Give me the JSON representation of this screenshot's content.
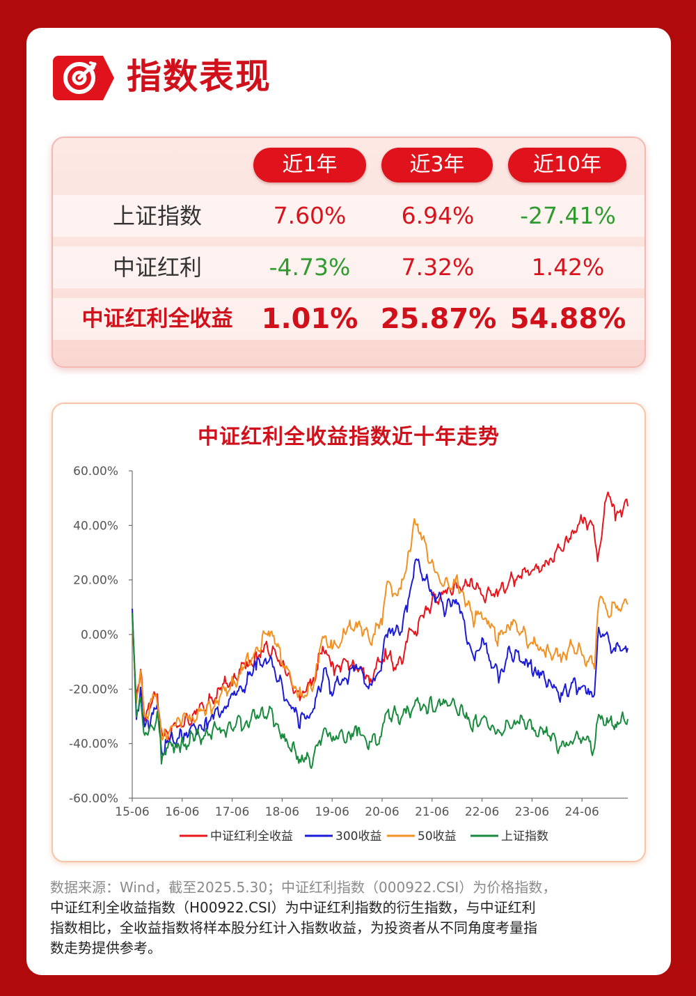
{
  "header": {
    "title": "指数表现"
  },
  "table": {
    "columns": [
      "近1年",
      "近3年",
      "近10年"
    ],
    "rows": [
      {
        "label": "上证指数",
        "values": [
          "7.60%",
          "6.94%",
          "-27.41%"
        ]
      },
      {
        "label": "中证红利",
        "values": [
          "-4.73%",
          "7.32%",
          "1.42%"
        ]
      },
      {
        "label": "中证红利全收益",
        "values": [
          "1.01%",
          "25.87%",
          "54.88%"
        ]
      }
    ]
  },
  "colors": {
    "brand_red": "#d0101a",
    "positive": "#d8131d",
    "negative": "#2f9a2f",
    "background": "#b00a0a"
  },
  "chart_data": {
    "type": "line",
    "title": "中证红利全收益指数近十年走势",
    "xlabel": "",
    "ylabel": "",
    "x_ticks": [
      "15-06",
      "16-06",
      "17-06",
      "18-06",
      "19-06",
      "20-06",
      "21-06",
      "22-06",
      "23-06",
      "24-06"
    ],
    "y_ticks": [
      "60.00%",
      "40.00%",
      "20.00%",
      "0.00%",
      "-20.00%",
      "-40.00%",
      "-60.00%"
    ],
    "ylim": [
      -60,
      60
    ],
    "xlim": [
      "2015-06",
      "2025-05"
    ],
    "legend_position": "bottom",
    "series": [
      {
        "name": "中证红利全收益",
        "color": "#e8141c",
        "x": [
          "2015-06",
          "2015-07",
          "2015-08",
          "2015-09",
          "2015-12",
          "2016-01",
          "2016-02",
          "2016-06",
          "2016-12",
          "2017-06",
          "2017-12",
          "2018-03",
          "2018-06",
          "2018-10",
          "2019-01",
          "2019-04",
          "2019-06",
          "2019-12",
          "2020-03",
          "2020-06",
          "2020-07",
          "2020-10",
          "2020-12",
          "2021-02",
          "2021-06",
          "2021-09",
          "2021-12",
          "2022-04",
          "2022-06",
          "2022-10",
          "2023-01",
          "2023-04",
          "2023-06",
          "2023-10",
          "2024-01",
          "2024-04",
          "2024-06",
          "2024-09",
          "2024-10",
          "2024-12",
          "2025-02",
          "2025-05"
        ],
        "values": [
          8,
          -25,
          -15,
          -30,
          -22,
          -38,
          -36,
          -33,
          -25,
          -16,
          -8,
          -5,
          -12,
          -22,
          -18,
          -4,
          -12,
          -10,
          -18,
          -8,
          -8,
          -12,
          -2,
          2,
          12,
          16,
          18,
          18,
          14,
          16,
          20,
          23,
          24,
          26,
          32,
          36,
          43,
          38,
          27,
          52,
          45,
          47
        ]
      },
      {
        "name": "300收益",
        "color": "#1a1ad8",
        "x": [
          "2015-06",
          "2015-07",
          "2015-08",
          "2015-09",
          "2015-12",
          "2016-01",
          "2016-02",
          "2016-06",
          "2016-12",
          "2017-06",
          "2017-12",
          "2018-03",
          "2018-06",
          "2018-10",
          "2019-01",
          "2019-04",
          "2019-06",
          "2019-12",
          "2020-03",
          "2020-06",
          "2020-07",
          "2020-10",
          "2020-12",
          "2021-02",
          "2021-06",
          "2021-09",
          "2021-12",
          "2022-04",
          "2022-06",
          "2022-10",
          "2023-01",
          "2023-04",
          "2023-06",
          "2023-10",
          "2024-01",
          "2024-04",
          "2024-06",
          "2024-09",
          "2024-10",
          "2024-12",
          "2025-02",
          "2025-05"
        ],
        "values": [
          8,
          -30,
          -20,
          -35,
          -25,
          -42,
          -40,
          -37,
          -32,
          -24,
          -12,
          -8,
          -20,
          -32,
          -30,
          -14,
          -20,
          -12,
          -20,
          -10,
          2,
          0,
          10,
          28,
          15,
          10,
          12,
          -8,
          -2,
          -15,
          -6,
          -10,
          -12,
          -18,
          -22,
          -18,
          -20,
          -22,
          3,
          -2,
          -6,
          -5
        ]
      },
      {
        "name": "50收益",
        "color": "#f39020",
        "x": [
          "2015-06",
          "2015-07",
          "2015-08",
          "2015-09",
          "2015-12",
          "2016-01",
          "2016-02",
          "2016-06",
          "2016-12",
          "2017-06",
          "2017-12",
          "2018-03",
          "2018-06",
          "2018-10",
          "2019-01",
          "2019-04",
          "2019-06",
          "2019-12",
          "2020-03",
          "2020-06",
          "2020-07",
          "2020-10",
          "2020-12",
          "2021-02",
          "2021-06",
          "2021-09",
          "2021-12",
          "2022-04",
          "2022-06",
          "2022-10",
          "2023-01",
          "2023-04",
          "2023-06",
          "2023-10",
          "2024-01",
          "2024-04",
          "2024-06",
          "2024-09",
          "2024-10",
          "2024-12",
          "2025-02",
          "2025-05"
        ],
        "values": [
          8,
          -25,
          -15,
          -30,
          -22,
          -38,
          -36,
          -32,
          -28,
          -18,
          -5,
          2,
          -10,
          -22,
          -20,
          0,
          -5,
          5,
          -2,
          5,
          18,
          15,
          25,
          42,
          25,
          18,
          20,
          5,
          8,
          -2,
          5,
          0,
          -4,
          -6,
          -8,
          -4,
          -8,
          -10,
          14,
          8,
          10,
          11
        ]
      },
      {
        "name": "上证指数",
        "color": "#178a3c",
        "x": [
          "2015-06",
          "2015-07",
          "2015-08",
          "2015-09",
          "2015-12",
          "2016-01",
          "2016-02",
          "2016-06",
          "2016-12",
          "2017-06",
          "2017-12",
          "2018-03",
          "2018-06",
          "2018-10",
          "2019-01",
          "2019-04",
          "2019-06",
          "2019-12",
          "2020-03",
          "2020-06",
          "2020-07",
          "2020-10",
          "2020-12",
          "2021-02",
          "2021-06",
          "2021-09",
          "2021-12",
          "2022-04",
          "2022-06",
          "2022-10",
          "2023-01",
          "2023-04",
          "2023-06",
          "2023-10",
          "2024-01",
          "2024-04",
          "2024-06",
          "2024-09",
          "2024-10",
          "2024-12",
          "2025-02",
          "2025-05"
        ],
        "values": [
          8,
          -30,
          -22,
          -38,
          -30,
          -44,
          -42,
          -40,
          -36,
          -34,
          -30,
          -28,
          -36,
          -46,
          -47,
          -36,
          -38,
          -36,
          -40,
          -37,
          -28,
          -30,
          -28,
          -26,
          -26,
          -25,
          -27,
          -33,
          -31,
          -36,
          -33,
          -32,
          -34,
          -37,
          -42,
          -38,
          -38,
          -42,
          -30,
          -32,
          -33,
          -31
        ]
      }
    ]
  },
  "source": {
    "line1": "数据来源：Wind，截至2025.5.30；中证红利指数（000922.CSI）为价格指数，",
    "line2": "中证红利全收益指数（H00922.CSI）为中证红利指数的衍生指数，与中证红利",
    "line3": "指数相比，全收益指数将样本股分红计入指数收益，为投资者从不同角度考量指",
    "line4": "数走势提供参考。"
  }
}
